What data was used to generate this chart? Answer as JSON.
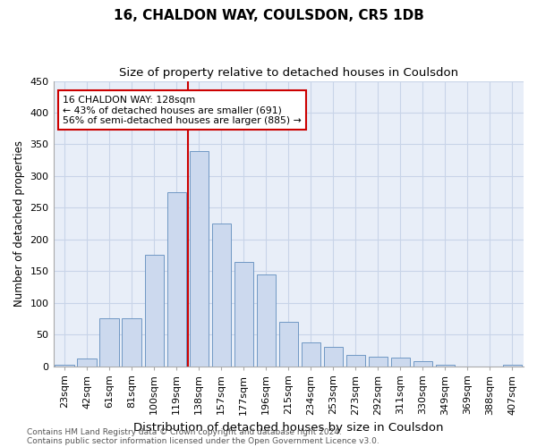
{
  "title": "16, CHALDON WAY, COULSDON, CR5 1DB",
  "subtitle": "Size of property relative to detached houses in Coulsdon",
  "xlabel": "Distribution of detached houses by size in Coulsdon",
  "ylabel": "Number of detached properties",
  "footnote1": "Contains HM Land Registry data © Crown copyright and database right 2024.",
  "footnote2": "Contains public sector information licensed under the Open Government Licence v3.0.",
  "categories": [
    "23sqm",
    "42sqm",
    "61sqm",
    "81sqm",
    "100sqm",
    "119sqm",
    "138sqm",
    "157sqm",
    "177sqm",
    "196sqm",
    "215sqm",
    "234sqm",
    "253sqm",
    "273sqm",
    "292sqm",
    "311sqm",
    "330sqm",
    "349sqm",
    "369sqm",
    "388sqm",
    "407sqm"
  ],
  "values": [
    2,
    12,
    75,
    75,
    175,
    275,
    340,
    225,
    165,
    145,
    70,
    37,
    30,
    18,
    15,
    13,
    8,
    2,
    0,
    0,
    2
  ],
  "bar_color": "#ccd9ee",
  "bar_edge_color": "#7098c4",
  "grid_color": "#c8d4e8",
  "background_color": "#e8eef8",
  "red_line_x": 5.5,
  "annotation_line1": "16 CHALDON WAY: 128sqm",
  "annotation_line2": "← 43% of detached houses are smaller (691)",
  "annotation_line3": "56% of semi-detached houses are larger (885) →",
  "annotation_box_color": "#ffffff",
  "annotation_box_edge": "#cc0000",
  "red_line_color": "#cc0000",
  "ylim": [
    0,
    450
  ],
  "yticks": [
    0,
    50,
    100,
    150,
    200,
    250,
    300,
    350,
    400,
    450
  ],
  "title_fontsize": 11,
  "subtitle_fontsize": 9.5,
  "xlabel_fontsize": 9.5,
  "ylabel_fontsize": 8.5,
  "tick_fontsize": 8,
  "footnote_fontsize": 6.5
}
